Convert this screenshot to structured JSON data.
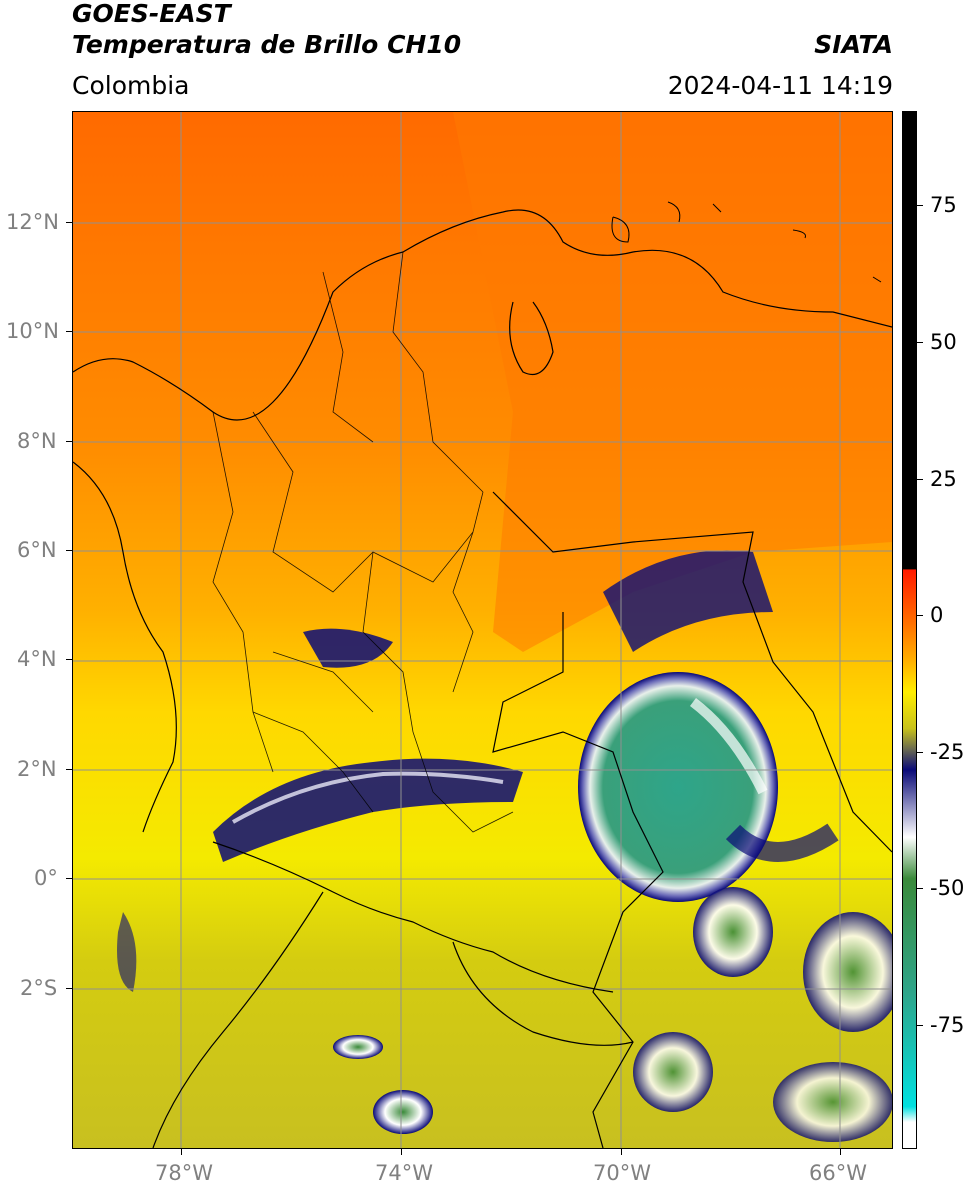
{
  "header": {
    "title_line1": "GOES-EAST",
    "title_line2": "Temperatura de Brillo CH10",
    "region": "Colombia",
    "source": "SIATA",
    "datetime": "2024-04-11 14:19"
  },
  "map": {
    "lat_ticks": [
      "12°N",
      "10°N",
      "8°N",
      "6°N",
      "4°N",
      "2°N",
      "0°",
      "2°S"
    ],
    "lon_ticks": [
      "78°W",
      "74°W",
      "70°W",
      "66°W"
    ]
  },
  "colorbar": {
    "labels": [
      "75",
      "50",
      "25",
      "0",
      "-25",
      "-50",
      "-75"
    ],
    "colors": {
      "warm_black": "#000000",
      "red": "#ff1a00",
      "orange": "#ff8800",
      "yellow": "#ffee00",
      "olive": "#c8c21a",
      "navy": "#0a0a78",
      "white": "#ffffff",
      "green": "#3a8a3a",
      "teal": "#28c8b0",
      "cyan": "#00e0e0"
    }
  }
}
